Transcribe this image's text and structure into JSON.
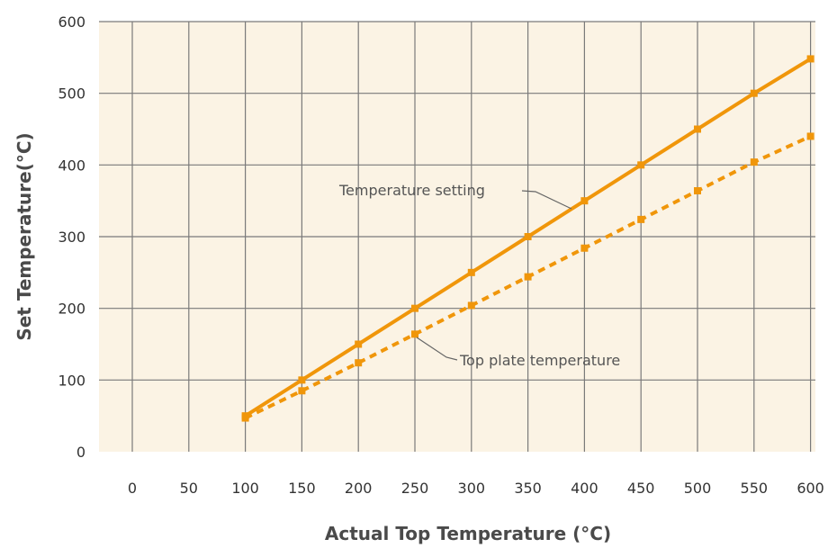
{
  "chart_data": {
    "type": "line",
    "title": "",
    "xlabel": "Actual Top Temperature (°C)",
    "ylabel": "Set Temperature(°C)",
    "xlim": [
      0,
      600
    ],
    "ylim": [
      0,
      600
    ],
    "x_ticks": [
      0,
      50,
      100,
      150,
      200,
      250,
      300,
      350,
      400,
      450,
      500,
      550,
      600
    ],
    "y_ticks": [
      0,
      100,
      200,
      300,
      400,
      500,
      600
    ],
    "grid": true,
    "line_color": "#f0960a",
    "grid_color": "#7a7a7a",
    "background_color": "#fbf3e4",
    "x": [
      100,
      150,
      200,
      250,
      300,
      350,
      400,
      450,
      500,
      550,
      600
    ],
    "series": [
      {
        "name": "Temperature setting",
        "style": "solid",
        "values": [
          50,
          100,
          150,
          200,
          250,
          300,
          350,
          400,
          450,
          500,
          548
        ]
      },
      {
        "name": "Top plate temperature",
        "style": "dashed",
        "values": [
          47,
          85,
          124,
          164,
          204,
          244,
          284,
          324,
          364,
          404,
          440
        ]
      }
    ],
    "annotations": [
      {
        "text": "Temperature setting"
      },
      {
        "text": "Top plate temperature"
      }
    ]
  }
}
